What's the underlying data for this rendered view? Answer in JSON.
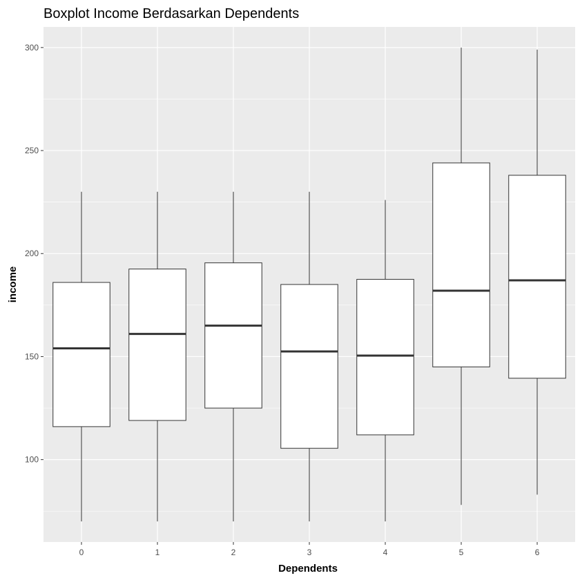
{
  "chart_data": {
    "type": "boxplot",
    "title": "Boxplot Income Berdasarkan Dependents",
    "xlabel": "Dependents",
    "ylabel": "income",
    "ylim": [
      60,
      310
    ],
    "yticks": [
      100,
      150,
      200,
      250,
      300
    ],
    "grid": true,
    "categories": [
      "0",
      "1",
      "2",
      "3",
      "4",
      "5",
      "6"
    ],
    "boxes": [
      {
        "category": "0",
        "min": 70,
        "q1": 116,
        "median": 154,
        "q3": 186,
        "max": 230
      },
      {
        "category": "1",
        "min": 70,
        "q1": 119,
        "median": 161,
        "q3": 192.5,
        "max": 230
      },
      {
        "category": "2",
        "min": 70,
        "q1": 125,
        "median": 165,
        "q3": 195.5,
        "max": 230
      },
      {
        "category": "3",
        "min": 70,
        "q1": 105.5,
        "median": 152.5,
        "q3": 185,
        "max": 230
      },
      {
        "category": "4",
        "min": 70,
        "q1": 112,
        "median": 150.5,
        "q3": 187.5,
        "max": 226
      },
      {
        "category": "5",
        "min": 78,
        "q1": 145,
        "median": 182,
        "q3": 244,
        "max": 300
      },
      {
        "category": "6",
        "min": 83,
        "q1": 139.5,
        "median": 187,
        "q3": 238,
        "max": 299
      }
    ],
    "colors": {
      "panel": "#EBEBEB",
      "grid": "#FFFFFF",
      "box_fill": "#FFFFFF",
      "line": "#333333",
      "tick_text": "#4D4D4D",
      "text": "#000000"
    }
  }
}
